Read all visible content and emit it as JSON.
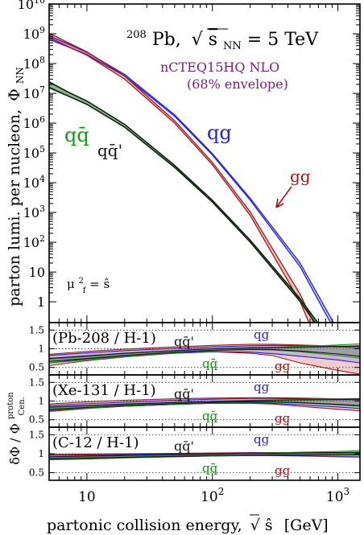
{
  "chart_data": [
    {
      "type": "line",
      "id": "main",
      "title": "208Pb, √sNN = 5 TeV",
      "title_parts": {
        "nucleus_mass": "208",
        "nucleus": "Pb,",
        "sqrt": "√",
        "s": "s",
        "sub": "NN",
        "value": " = 5 TeV"
      },
      "subtitle_line1": "nCTEQ15HQ NLO",
      "subtitle_line2": "(68% envelope)",
      "ylabel_main": "parton lumi. per nucleon,",
      "ylabel_phi": "Φ",
      "ylabel_sub": "NN",
      "scale_note": {
        "mu": "μ",
        "sup": "2",
        "sub": "f",
        "eq": " = ",
        "shat": "ŝ"
      },
      "xscale": "log",
      "yscale": "log",
      "xlim": [
        5,
        1500
      ],
      "ylim": [
        0.2,
        10000000000.0
      ],
      "ytick_labels": [
        {
          "v": 1,
          "label": "1"
        },
        {
          "v": 10,
          "label": "10"
        },
        {
          "v": 100,
          "label": "10^2"
        },
        {
          "v": 1000,
          "label": "10^3"
        },
        {
          "v": 10000,
          "label": "10^4"
        },
        {
          "v": 100000,
          "label": "10^5"
        },
        {
          "v": 1000000,
          "label": "10^6"
        },
        {
          "v": 10000000,
          "label": "10^7"
        },
        {
          "v": 100000000,
          "label": "10^8"
        },
        {
          "v": 1000000000,
          "label": "10^9"
        },
        {
          "v": 10000000000,
          "label": "10^10"
        }
      ],
      "series": [
        {
          "name": "qg",
          "color": "#2222dd",
          "x": [
            5,
            7,
            10,
            20,
            50,
            100,
            200,
            500,
            1000,
            1500
          ],
          "lo": [
            650000000.0,
            370000000.0,
            200000000.0,
            38000000.0,
            1700000.0,
            85000.0,
            2600.0,
            15.0,
            0.07,
            0.003
          ],
          "hi": [
            850000000.0,
            470000000.0,
            240000000.0,
            43000000.0,
            1900000.0,
            95000.0,
            3000.0,
            20.0,
            0.11,
            0.005
          ]
        },
        {
          "name": "gg",
          "color": "#aa1111",
          "x": [
            5,
            7,
            10,
            20,
            50,
            100,
            200,
            500,
            1000,
            1500
          ],
          "lo": [
            750000000.0,
            380000000.0,
            190000000.0,
            30000000.0,
            1000000.0,
            40000.0,
            800.0,
            1.0,
            0.001,
            1e-05
          ],
          "hi": [
            1050000000.0,
            520000000.0,
            250000000.0,
            38000000.0,
            1200000.0,
            48000.0,
            1050.0,
            1.8,
            0.004,
            0.0001
          ]
        },
        {
          "name": "qq̄",
          "color": "#119911",
          "x": [
            5,
            7,
            10,
            20,
            50,
            100,
            200,
            500,
            1000,
            1500
          ],
          "lo": [
            15000000.0,
            8200000.0,
            4200000.0,
            720000.0,
            32000.0,
            2200.0,
            100.0,
            1.0,
            0.015,
            0.0003
          ],
          "hi": [
            25000000.0,
            11500000.0,
            5600000.0,
            920000.0,
            39000.0,
            2600.0,
            120.0,
            1.3,
            0.025,
            0.0008
          ]
        },
        {
          "name": "qq̄'",
          "color": "#111111",
          "x": [
            5,
            7,
            10,
            20,
            50,
            100,
            200,
            500,
            1000,
            1500
          ],
          "lo": [
            16000000.0,
            8400000.0,
            4300000.0,
            740000.0,
            33000.0,
            2250.0,
            102.0,
            1.05,
            0.016,
            0.00035
          ],
          "hi": [
            24000000.0,
            11200000.0,
            5500000.0,
            900000.0,
            38000.0,
            2550.0,
            118.0,
            1.25,
            0.023,
            0.0007
          ]
        }
      ],
      "annotations": [
        {
          "text": "qg",
          "color": "#2222dd"
        },
        {
          "text": "gg",
          "color": "#aa1111"
        },
        {
          "text": "qq̄",
          "color": "#119911"
        },
        {
          "text": "qq̄'",
          "color": "#111111"
        }
      ]
    },
    {
      "type": "area",
      "id": "ratio_pb",
      "label": "(Pb-208 / H-1)",
      "xscale": "log",
      "xlim": [
        5,
        1500
      ],
      "ylim": [
        0.3,
        1.7
      ],
      "ytick_labels": [
        "0.5",
        "1",
        "1.5"
      ],
      "series": [
        {
          "name": "qq̄'",
          "color": "#111111"
        },
        {
          "name": "qg",
          "color": "#2222dd"
        },
        {
          "name": "qq̄",
          "color": "#119911"
        },
        {
          "name": "gg",
          "color": "#aa1111"
        }
      ],
      "bands": [
        {
          "name": "gg",
          "color": "#aa1111",
          "fill": "rgba(215,110,110,0.35)",
          "x": [
            5,
            10,
            20,
            50,
            100,
            200,
            300,
            500,
            1000,
            1500
          ],
          "lo": [
            0.55,
            0.68,
            0.78,
            0.88,
            0.92,
            0.88,
            0.82,
            0.62,
            0.42,
            0.32
          ],
          "hi": [
            0.85,
            0.93,
            0.99,
            1.05,
            1.09,
            1.12,
            1.12,
            1.1,
            1.07,
            1.06
          ]
        },
        {
          "name": "qg",
          "color": "#2222dd",
          "fill": "rgba(110,110,225,0.28)",
          "x": [
            5,
            10,
            20,
            50,
            100,
            200,
            300,
            500,
            1000,
            1500
          ],
          "lo": [
            0.62,
            0.73,
            0.81,
            0.88,
            0.92,
            0.91,
            0.87,
            0.8,
            0.7,
            0.62
          ],
          "hi": [
            0.82,
            0.89,
            0.95,
            1.01,
            1.05,
            1.08,
            1.09,
            1.08,
            1.05,
            1.03
          ]
        },
        {
          "name": "qq̄",
          "color": "#119911",
          "fill": "rgba(80,160,80,0.22)",
          "x": [
            5,
            10,
            20,
            50,
            100,
            200,
            300,
            500,
            1000,
            1500
          ],
          "lo": [
            0.62,
            0.7,
            0.79,
            0.89,
            0.95,
            0.98,
            0.97,
            0.92,
            0.82,
            0.75
          ],
          "hi": [
            0.72,
            0.79,
            0.87,
            0.95,
            1.0,
            1.03,
            1.04,
            1.06,
            1.1,
            1.13
          ]
        },
        {
          "name": "qq̄'",
          "color": "#111111",
          "fill": "rgba(90,90,90,0.18)",
          "x": [
            5,
            10,
            20,
            50,
            100,
            200,
            300,
            500,
            1000,
            1500
          ],
          "lo": [
            0.66,
            0.74,
            0.82,
            0.91,
            0.96,
            0.98,
            0.98,
            0.94,
            0.86,
            0.8
          ],
          "hi": [
            0.74,
            0.81,
            0.88,
            0.95,
            1.0,
            1.02,
            1.03,
            1.04,
            1.06,
            1.08
          ]
        }
      ]
    },
    {
      "type": "area",
      "id": "ratio_xe",
      "label": "(Xe-131 / H-1)",
      "xscale": "log",
      "xlim": [
        5,
        1500
      ],
      "ylim": [
        0.3,
        1.7
      ],
      "ytick_labels": [
        "0.5",
        "1",
        "1.5"
      ],
      "series": [
        {
          "name": "qq̄'",
          "color": "#111111"
        },
        {
          "name": "qg",
          "color": "#2222dd"
        },
        {
          "name": "qq̄",
          "color": "#119911"
        },
        {
          "name": "gg",
          "color": "#aa1111"
        }
      ],
      "bands": [
        {
          "name": "gg",
          "color": "#aa1111",
          "fill": "rgba(215,110,110,0.35)",
          "x": [
            5,
            10,
            20,
            50,
            100,
            200,
            300,
            500,
            1000,
            1500
          ],
          "lo": [
            0.72,
            0.8,
            0.86,
            0.91,
            0.94,
            0.94,
            0.92,
            0.86,
            0.78,
            0.74
          ],
          "hi": [
            0.92,
            0.98,
            1.02,
            1.06,
            1.08,
            1.09,
            1.09,
            1.08,
            1.06,
            1.05
          ]
        },
        {
          "name": "qg",
          "color": "#2222dd",
          "fill": "rgba(110,110,225,0.28)",
          "x": [
            5,
            10,
            20,
            50,
            100,
            200,
            300,
            500,
            1000,
            1500
          ],
          "lo": [
            0.74,
            0.81,
            0.86,
            0.91,
            0.94,
            0.95,
            0.94,
            0.9,
            0.84,
            0.8
          ],
          "hi": [
            0.88,
            0.93,
            0.97,
            1.02,
            1.05,
            1.07,
            1.07,
            1.06,
            1.04,
            1.03
          ]
        },
        {
          "name": "qq̄",
          "color": "#119911",
          "fill": "rgba(80,160,80,0.22)",
          "x": [
            5,
            10,
            20,
            50,
            100,
            200,
            300,
            500,
            1000,
            1500
          ],
          "lo": [
            0.76,
            0.81,
            0.86,
            0.91,
            0.95,
            0.97,
            0.97,
            0.95,
            0.9,
            0.86
          ],
          "hi": [
            0.83,
            0.87,
            0.91,
            0.96,
            0.99,
            1.02,
            1.03,
            1.04,
            1.06,
            1.07
          ]
        },
        {
          "name": "qq̄'",
          "color": "#111111",
          "fill": "rgba(90,90,90,0.18)",
          "x": [
            5,
            10,
            20,
            50,
            100,
            200,
            300,
            500,
            1000,
            1500
          ],
          "lo": [
            0.78,
            0.83,
            0.88,
            0.93,
            0.96,
            0.98,
            0.98,
            0.96,
            0.91,
            0.88
          ],
          "hi": [
            0.84,
            0.88,
            0.92,
            0.96,
            0.99,
            1.01,
            1.02,
            1.03,
            1.04,
            1.05
          ]
        }
      ]
    },
    {
      "type": "area",
      "id": "ratio_c",
      "label": "(C-12 / H-1)",
      "xscale": "log",
      "xlim": [
        5,
        1500
      ],
      "ylim": [
        0.3,
        1.7
      ],
      "ytick_labels": [
        "0.5",
        "1",
        "1.5"
      ],
      "series": [
        {
          "name": "qq̄'",
          "color": "#111111"
        },
        {
          "name": "qg",
          "color": "#2222dd"
        },
        {
          "name": "qq̄",
          "color": "#119911"
        },
        {
          "name": "gg",
          "color": "#aa1111"
        }
      ],
      "bands": [
        {
          "name": "gg",
          "color": "#aa1111",
          "fill": "rgba(215,110,110,0.35)",
          "x": [
            5,
            10,
            20,
            50,
            100,
            200,
            300,
            500,
            1000,
            1500
          ],
          "lo": [
            0.88,
            0.9,
            0.92,
            0.94,
            0.95,
            0.96,
            0.96,
            0.95,
            0.93,
            0.92
          ],
          "hi": [
            0.98,
            0.99,
            1.0,
            1.01,
            1.02,
            1.03,
            1.03,
            1.03,
            1.03,
            1.03
          ]
        },
        {
          "name": "qg",
          "color": "#2222dd",
          "fill": "rgba(110,110,225,0.28)",
          "x": [
            5,
            10,
            20,
            50,
            100,
            200,
            300,
            500,
            1000,
            1500
          ],
          "lo": [
            0.86,
            0.88,
            0.9,
            0.92,
            0.94,
            0.95,
            0.95,
            0.94,
            0.92,
            0.91
          ],
          "hi": [
            0.96,
            0.97,
            0.98,
            1.0,
            1.01,
            1.02,
            1.02,
            1.02,
            1.02,
            1.02
          ]
        },
        {
          "name": "qq̄",
          "color": "#119911",
          "fill": "rgba(80,160,80,0.22)",
          "x": [
            5,
            10,
            20,
            50,
            100,
            200,
            300,
            500,
            1000,
            1500
          ],
          "lo": [
            0.84,
            0.86,
            0.89,
            0.92,
            0.94,
            0.96,
            0.97,
            0.97,
            0.98,
            0.98
          ],
          "hi": [
            0.91,
            0.93,
            0.95,
            0.97,
            0.99,
            1.01,
            1.02,
            1.04,
            1.06,
            1.08
          ]
        },
        {
          "name": "qq̄'",
          "color": "#111111",
          "fill": "rgba(90,90,90,0.18)",
          "x": [
            5,
            10,
            20,
            50,
            100,
            200,
            300,
            500,
            1000,
            1500
          ],
          "lo": [
            0.86,
            0.88,
            0.9,
            0.93,
            0.95,
            0.96,
            0.97,
            0.97,
            0.97,
            0.97
          ],
          "hi": [
            0.92,
            0.94,
            0.96,
            0.98,
            0.99,
            1.0,
            1.01,
            1.02,
            1.03,
            1.04
          ]
        }
      ]
    }
  ],
  "ratio_axis_label": {
    "delta": "δΦ / Φ",
    "sup": "proton",
    "sub": "Cen."
  },
  "xaxis": {
    "label": "partonic collision energy,",
    "sqrt": "√",
    "shat": "ŝ",
    "unit": "[GeV]",
    "tick_labels": [
      {
        "v": 10,
        "label": "10"
      },
      {
        "v": 100,
        "label": "10^2"
      },
      {
        "v": 1000,
        "label": "10^3"
      }
    ]
  }
}
